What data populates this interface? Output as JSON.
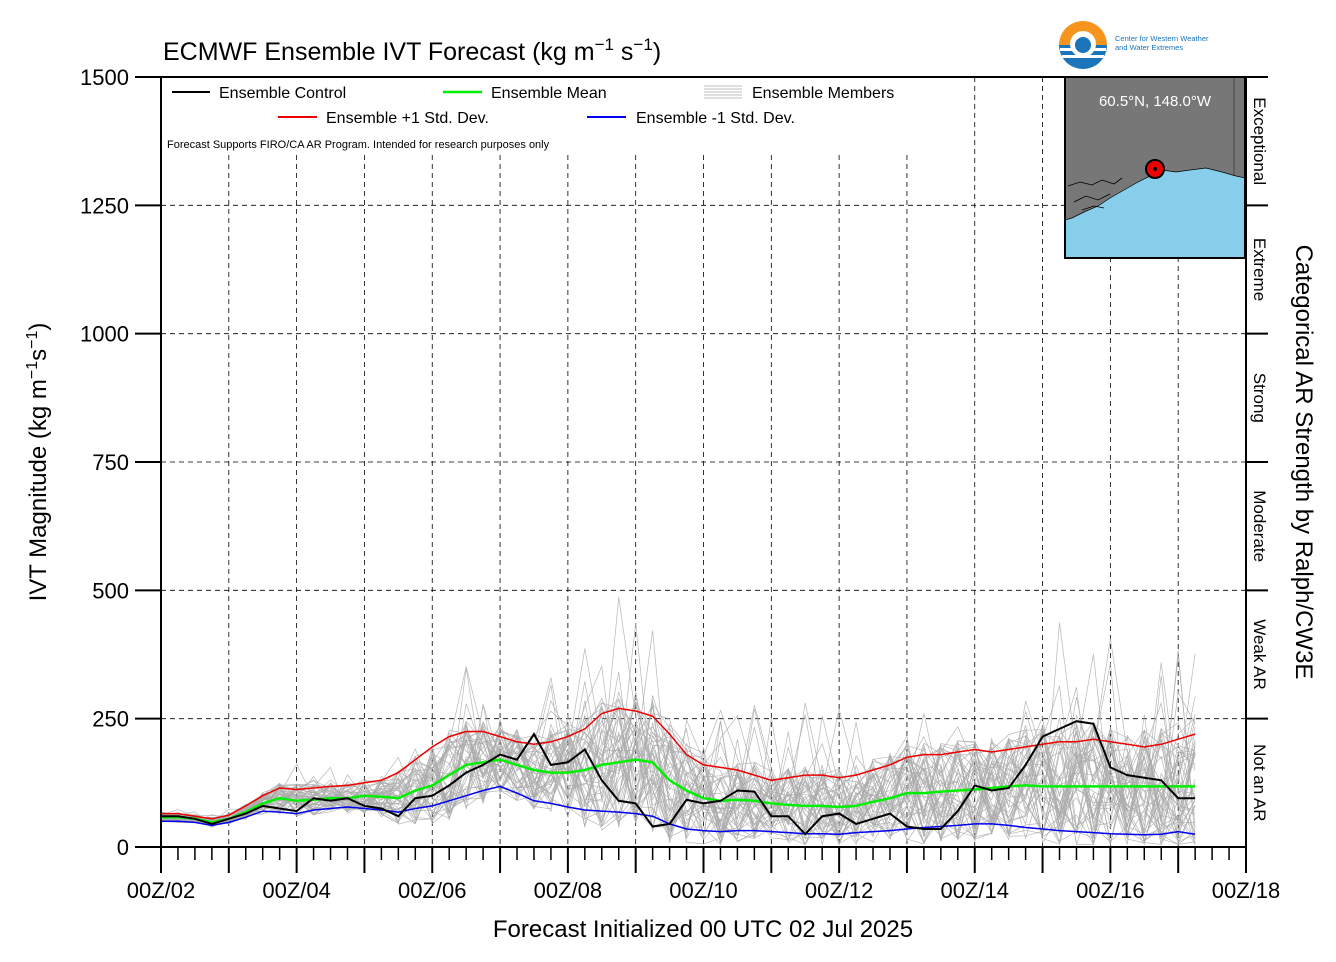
{
  "chart_data": {
    "type": "line",
    "title": "ECMWF Ensemble IVT Forecast (kg m",
    "title_exp1": "−1",
    "title_mid": " s",
    "title_exp2": "−1",
    "title_end": ")",
    "ylabel": "IVT Magnitude (kg m",
    "ylabel_exp1": "−1",
    "ylabel_mid": "s",
    "ylabel_exp2": "−1",
    "ylabel_end": ")",
    "xlabel": "Forecast Initialized 00 UTC 02 Jul 2025",
    "right_axis_label": "Categorical AR Strength by Ralph/CW3E",
    "note": "Forecast Supports FIRO/CA AR Program. Intended for research purposes only",
    "ylim": [
      0,
      1500
    ],
    "xlim": [
      0,
      384
    ],
    "y_ticks": [
      0,
      250,
      500,
      750,
      1000,
      1250,
      1500
    ],
    "x_tick_labels": [
      "00Z/02",
      "00Z/04",
      "00Z/06",
      "00Z/08",
      "00Z/10",
      "00Z/12",
      "00Z/14",
      "00Z/16",
      "00Z/18"
    ],
    "x_tick_hours": [
      0,
      48,
      96,
      144,
      192,
      240,
      288,
      336,
      384
    ],
    "categories": [
      {
        "name": "Not an AR",
        "range": [
          0,
          250
        ]
      },
      {
        "name": "Weak AR",
        "range": [
          250,
          500
        ]
      },
      {
        "name": "Moderate",
        "range": [
          500,
          750
        ]
      },
      {
        "name": "Strong",
        "range": [
          750,
          1000
        ]
      },
      {
        "name": "Extreme",
        "range": [
          1000,
          1250
        ]
      },
      {
        "name": "Exceptional",
        "range": [
          1250,
          1500
        ]
      }
    ],
    "legend": {
      "position": "top-left",
      "items": [
        {
          "label": "Ensemble Control",
          "color": "#000000"
        },
        {
          "label": "Ensemble Mean",
          "color": "#00ee00"
        },
        {
          "label": "Ensemble Members",
          "color": "#aaaaaa"
        },
        {
          "label": "Ensemble +1 Std. Dev.",
          "color": "#ee0000"
        },
        {
          "label": "Ensemble -1 Std. Dev.",
          "color": "#0000ee"
        }
      ]
    },
    "grid": true,
    "series": [
      {
        "name": "Ensemble Control",
        "color": "#000000",
        "x": [
          0,
          6,
          12,
          18,
          24,
          30,
          36,
          42,
          48,
          54,
          60,
          66,
          72,
          78,
          84,
          90,
          96,
          102,
          108,
          114,
          120,
          126,
          132,
          138,
          144,
          150,
          156,
          162,
          168,
          174,
          180,
          186,
          192,
          198,
          204,
          210,
          216,
          222,
          228,
          234,
          240,
          246,
          252,
          258,
          264,
          270,
          276,
          282,
          288,
          294,
          300,
          306,
          312,
          318,
          324,
          330,
          336,
          342,
          348,
          354,
          360,
          366
        ],
        "y": [
          60,
          60,
          55,
          45,
          55,
          65,
          80,
          75,
          70,
          95,
          90,
          95,
          80,
          75,
          60,
          95,
          100,
          120,
          145,
          160,
          180,
          170,
          220,
          160,
          165,
          190,
          130,
          90,
          85,
          40,
          45,
          92,
          85,
          90,
          110,
          108,
          60,
          60,
          25,
          60,
          65,
          45,
          55,
          65,
          40,
          35,
          35,
          70,
          120,
          110,
          115,
          160,
          215,
          230,
          245,
          240,
          155,
          140,
          135,
          130,
          95,
          95
        ]
      },
      {
        "name": "Ensemble Mean",
        "color": "#00ee00",
        "x": [
          0,
          6,
          12,
          18,
          24,
          30,
          36,
          42,
          48,
          54,
          60,
          66,
          72,
          78,
          84,
          90,
          96,
          102,
          108,
          114,
          120,
          126,
          132,
          138,
          144,
          150,
          156,
          162,
          168,
          174,
          180,
          186,
          192,
          198,
          204,
          210,
          216,
          222,
          228,
          234,
          240,
          246,
          252,
          258,
          264,
          270,
          276,
          282,
          288,
          294,
          300,
          306,
          312,
          318,
          324,
          330,
          336,
          342,
          348,
          354,
          360,
          366
        ],
        "y": [
          58,
          58,
          55,
          48,
          55,
          68,
          85,
          95,
          90,
          92,
          95,
          95,
          100,
          98,
          95,
          110,
          120,
          140,
          160,
          165,
          170,
          160,
          150,
          145,
          145,
          150,
          160,
          165,
          170,
          165,
          130,
          110,
          95,
          90,
          92,
          90,
          85,
          82,
          80,
          80,
          78,
          80,
          88,
          95,
          105,
          105,
          108,
          110,
          112,
          115,
          118,
          120,
          118,
          118,
          118,
          118,
          118,
          118,
          118,
          118,
          118,
          118
        ]
      },
      {
        "name": "Ensemble +1 Std. Dev.",
        "color": "#ee0000",
        "x": [
          0,
          6,
          12,
          18,
          24,
          30,
          36,
          42,
          48,
          54,
          60,
          66,
          72,
          78,
          84,
          90,
          96,
          102,
          108,
          114,
          120,
          126,
          132,
          138,
          144,
          150,
          156,
          162,
          168,
          174,
          180,
          186,
          192,
          198,
          204,
          210,
          216,
          222,
          228,
          234,
          240,
          246,
          252,
          258,
          264,
          270,
          276,
          282,
          288,
          294,
          300,
          306,
          312,
          318,
          324,
          330,
          336,
          342,
          348,
          354,
          360,
          366
        ],
        "y": [
          65,
          65,
          60,
          55,
          62,
          80,
          100,
          115,
          112,
          115,
          118,
          120,
          125,
          130,
          145,
          170,
          195,
          215,
          225,
          225,
          215,
          205,
          200,
          205,
          215,
          230,
          260,
          270,
          265,
          255,
          220,
          180,
          160,
          155,
          150,
          140,
          130,
          135,
          140,
          140,
          135,
          140,
          150,
          160,
          175,
          180,
          180,
          185,
          190,
          185,
          190,
          195,
          200,
          205,
          205,
          210,
          205,
          200,
          195,
          200,
          210,
          220
        ]
      },
      {
        "name": "Ensemble -1 Std. Dev.",
        "color": "#0000ee",
        "x": [
          0,
          6,
          12,
          18,
          24,
          30,
          36,
          42,
          48,
          54,
          60,
          66,
          72,
          78,
          84,
          90,
          96,
          102,
          108,
          114,
          120,
          126,
          132,
          138,
          144,
          150,
          156,
          162,
          168,
          174,
          180,
          186,
          192,
          198,
          204,
          210,
          216,
          222,
          228,
          234,
          240,
          246,
          252,
          258,
          264,
          270,
          276,
          282,
          288,
          294,
          300,
          306,
          312,
          318,
          324,
          330,
          336,
          342,
          348,
          354,
          360,
          366
        ],
        "y": [
          50,
          50,
          48,
          42,
          48,
          58,
          70,
          68,
          65,
          72,
          75,
          78,
          75,
          72,
          68,
          75,
          80,
          90,
          100,
          110,
          118,
          105,
          90,
          85,
          78,
          72,
          70,
          68,
          65,
          60,
          45,
          35,
          32,
          30,
          32,
          32,
          30,
          28,
          26,
          26,
          25,
          28,
          30,
          32,
          35,
          38,
          40,
          42,
          45,
          45,
          42,
          38,
          35,
          32,
          30,
          28,
          26,
          25,
          24,
          25,
          30,
          25
        ]
      }
    ],
    "member_count": 50,
    "inset_map": {
      "label": "60.5°N, 148.0°W",
      "land_color": "#777777",
      "ocean_color": "#87ceeb",
      "marker_color": "#ee0000"
    },
    "logo": {
      "line1": "Center for Western Weather",
      "line2": "and Water Extremes"
    }
  }
}
